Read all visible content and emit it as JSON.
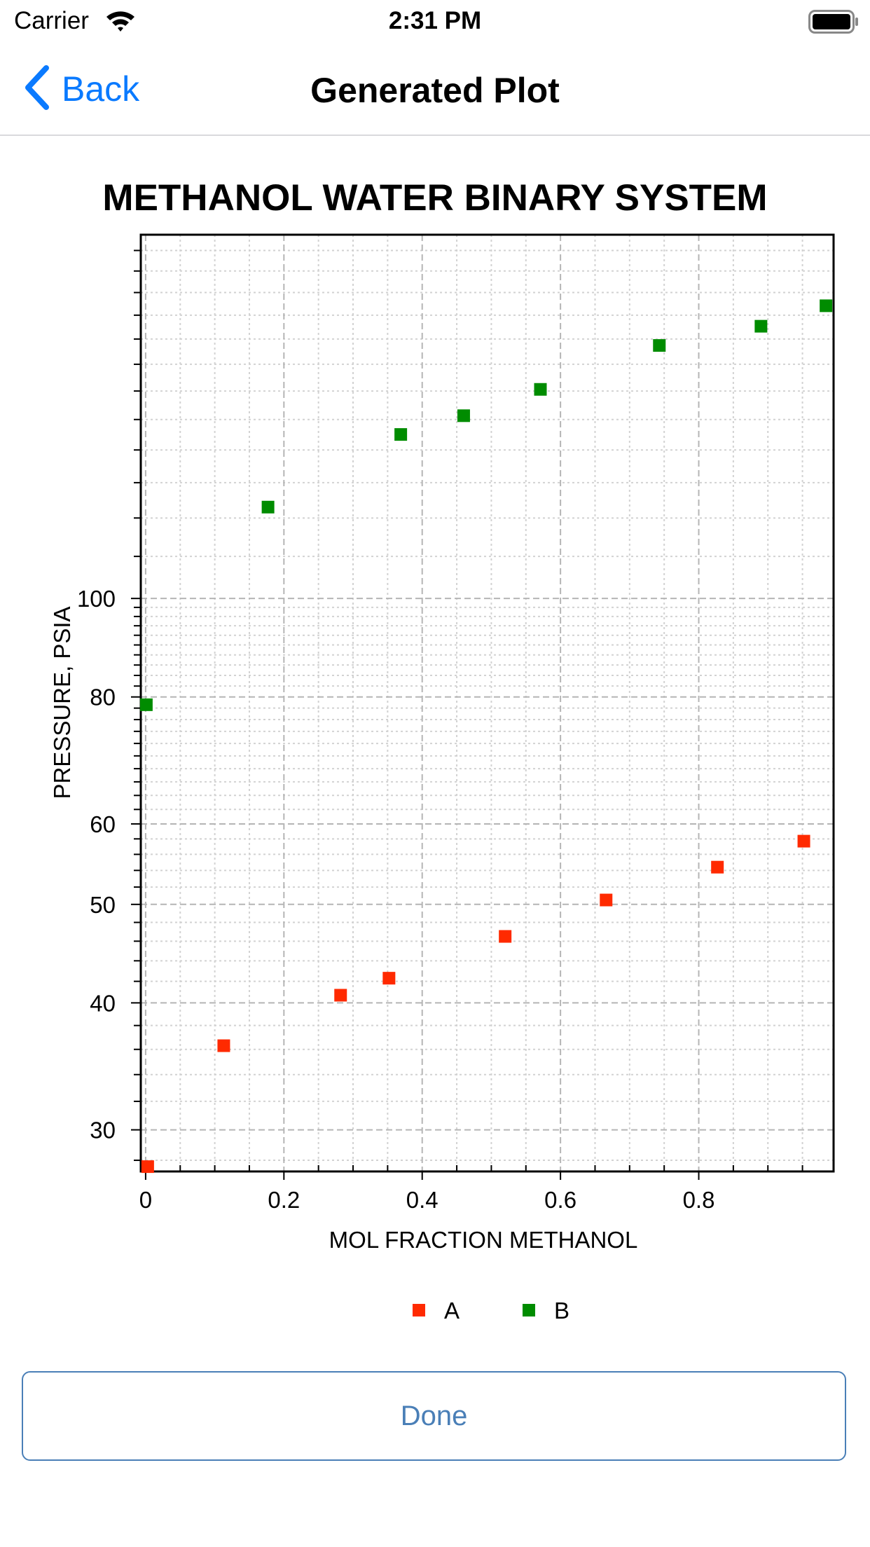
{
  "status_bar": {
    "carrier": "Carrier",
    "time": "2:31 PM"
  },
  "nav": {
    "back_label": "Back",
    "title": "Generated Plot"
  },
  "footer": {
    "done_label": "Done"
  },
  "chart_data": {
    "type": "scatter",
    "title": "METHANOL WATER BINARY SYSTEM",
    "xlabel": "MOL FRACTION METHANOL",
    "ylabel": "PRESSURE, PSIA",
    "x_scale": "linear",
    "y_scale": "log",
    "xlim": [
      -0.007,
      0.995
    ],
    "ylim": [
      27.3,
      228
    ],
    "x_ticks": [
      0,
      0.2,
      0.4,
      0.6,
      0.8
    ],
    "x_tick_labels": [
      "0",
      "0.2",
      "0.4",
      "0.6",
      "0.8"
    ],
    "y_ticks": [
      30,
      40,
      50,
      60,
      80,
      100
    ],
    "y_tick_labels": [
      "30",
      "40",
      "50",
      "60",
      "80",
      "100"
    ],
    "grid": true,
    "legend": "bottom-center",
    "series": [
      {
        "name": "A",
        "color": "#ff2a00",
        "marker": "square",
        "points": [
          [
            0.003,
            27.6
          ],
          [
            0.113,
            36.3
          ],
          [
            0.282,
            40.7
          ],
          [
            0.352,
            42.3
          ],
          [
            0.52,
            46.5
          ],
          [
            0.666,
            50.5
          ],
          [
            0.827,
            54.4
          ],
          [
            0.952,
            57.7
          ]
        ]
      },
      {
        "name": "B",
        "color": "#008c00",
        "marker": "square",
        "points": [
          [
            0.001,
            78.6
          ],
          [
            0.177,
            123.0
          ],
          [
            0.369,
            145.0
          ],
          [
            0.46,
            151.3
          ],
          [
            0.571,
            160.6
          ],
          [
            0.743,
            177.4
          ],
          [
            0.89,
            185.3
          ],
          [
            0.984,
            194.1
          ]
        ]
      }
    ]
  }
}
